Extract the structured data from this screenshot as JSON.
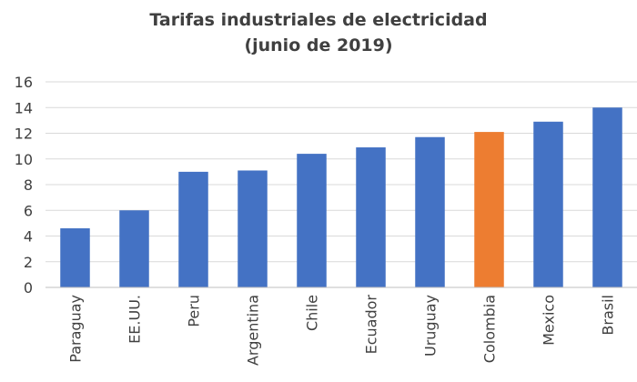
{
  "chart_data": {
    "type": "bar",
    "title": "Tarifas industriales de electricidad",
    "subtitle": "(junio de 2019)",
    "categories": [
      "Paraguay",
      "EE.UU.",
      "Peru",
      "Argentina",
      "Chile",
      "Ecuador",
      "Uruguay",
      "Colombia",
      "Mexico",
      "Brasil"
    ],
    "values": [
      4.6,
      6.0,
      9.0,
      9.1,
      10.4,
      10.9,
      11.7,
      12.1,
      12.9,
      14.0
    ],
    "ylim": [
      0,
      16
    ],
    "yticks": [
      0,
      2,
      4,
      6,
      8,
      10,
      12,
      14,
      16
    ],
    "grid": true,
    "legend": "none",
    "colors": {
      "default": "#4472C4",
      "highlight": "#ED7D31",
      "highlight_category": "Colombia",
      "grid": "#D9D9D9",
      "axis": "#BFBFBF"
    }
  }
}
